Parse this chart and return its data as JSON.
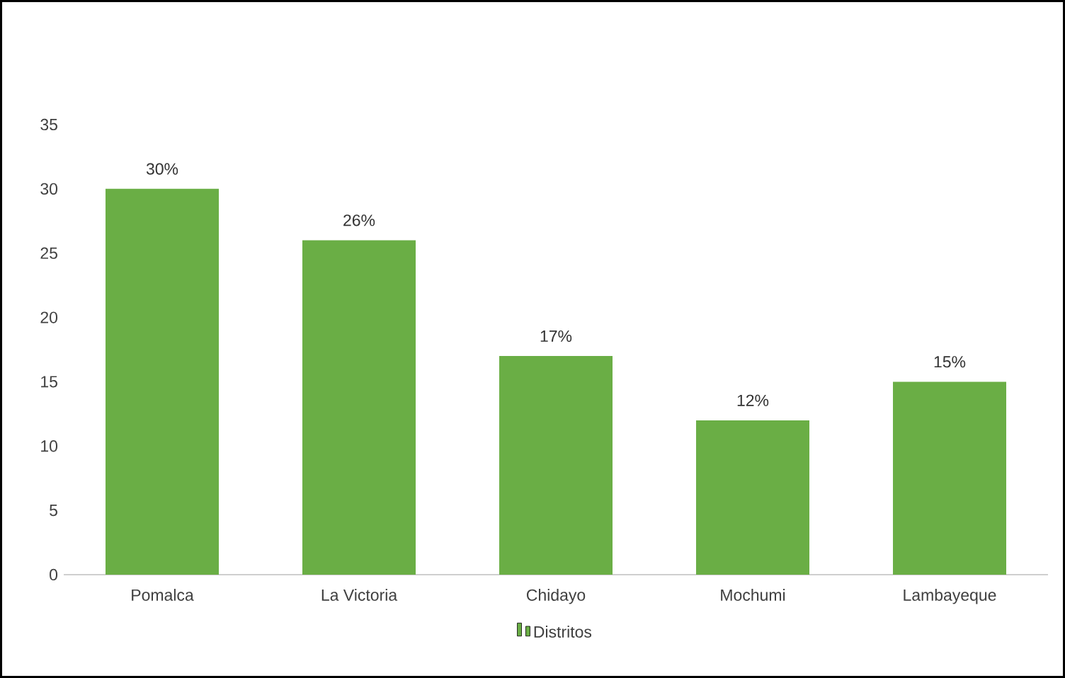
{
  "chart_data": {
    "type": "bar",
    "categories": [
      "Pomalca",
      "La Victoria",
      "Chidayo",
      "Mochumi",
      "Lambayeque"
    ],
    "series": [
      {
        "name": "Distritos",
        "color": "#6aae45",
        "values": [
          30,
          26,
          17,
          12,
          15
        ],
        "value_labels": [
          "30%",
          "26%",
          "17%",
          "12%",
          "15%"
        ]
      }
    ],
    "ylim": [
      0,
      35
    ],
    "yticks": [
      0,
      5,
      10,
      15,
      20,
      25,
      30,
      35
    ],
    "grid": false,
    "legend": "bottom"
  }
}
